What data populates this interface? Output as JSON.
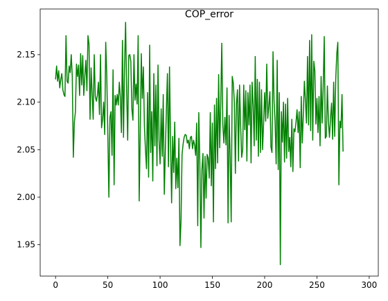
{
  "chart_data": {
    "type": "line",
    "title": "COP_error",
    "xlabel": "",
    "ylabel": "",
    "xlim": [
      -14.7,
      308.7
    ],
    "ylim": [
      1.917,
      2.198
    ],
    "xticks": [
      0,
      50,
      100,
      150,
      200,
      250,
      300
    ],
    "xtick_labels": [
      "0",
      "50",
      "100",
      "150",
      "200",
      "250",
      "300"
    ],
    "yticks": [
      1.95,
      2.0,
      2.05,
      2.1,
      2.15
    ],
    "ytick_labels": [
      "1.95",
      "2.00",
      "2.05",
      "2.10",
      "2.15"
    ],
    "grid": false,
    "legend": "none",
    "line_color": "#008000",
    "series": [
      {
        "values": [
          2.124,
          2.138,
          2.122,
          2.133,
          2.115,
          2.124,
          2.13,
          2.113,
          2.108,
          2.106,
          2.17,
          2.122,
          2.12,
          2.138,
          2.131,
          2.15,
          2.127,
          2.042,
          2.079,
          2.09,
          2.14,
          2.127,
          2.139,
          2.107,
          2.151,
          2.118,
          2.149,
          2.107,
          2.128,
          2.144,
          2.112,
          2.17,
          2.161,
          2.082,
          2.136,
          2.108,
          2.082,
          2.15,
          2.106,
          2.101,
          2.107,
          2.121,
          2.087,
          2.15,
          2.073,
          2.082,
          2.1,
          2.066,
          2.163,
          2.128,
          2.066,
          2.0,
          2.084,
          2.09,
          2.044,
          2.134,
          2.013,
          2.107,
          2.097,
          2.108,
          2.097,
          2.121,
          2.105,
          2.068,
          2.165,
          2.063,
          2.139,
          2.184,
          2.112,
          2.06,
          2.149,
          2.15,
          2.143,
          2.093,
          2.081,
          2.15,
          2.102,
          2.119,
          2.098,
          2.17,
          1.996,
          2.068,
          2.151,
          2.104,
          2.137,
          2.075,
          2.05,
          2.03,
          2.11,
          2.021,
          2.16,
          2.047,
          2.09,
          2.017,
          2.13,
          2.054,
          2.118,
          2.033,
          2.139,
          2.06,
          2.035,
          2.093,
          2.043,
          2.108,
          2.003,
          2.048,
          2.092,
          2.13,
          2.032,
          2.137,
          2.058,
          1.994,
          2.064,
          2.026,
          2.079,
          2.009,
          2.041,
          2.01,
          2.062,
          1.949,
          1.975,
          2.045,
          2.056,
          2.063,
          2.066,
          2.065,
          2.057,
          2.06,
          2.051,
          2.063,
          2.064,
          2.051,
          2.06,
          2.055,
          2.044,
          2.078,
          1.97,
          2.089,
          2.036,
          1.947,
          2.029,
          2.046,
          1.978,
          2.043,
          1.999,
          2.045,
          2.041,
          2.02,
          2.089,
          2.012,
          2.078,
          1.974,
          2.097,
          2.03,
          2.104,
          2.036,
          2.129,
          2.052,
          2.099,
          2.162,
          2.076,
          2.057,
          2.084,
          2.055,
          2.115,
          1.973,
          2.086,
          2.042,
          1.974,
          2.127,
          2.12,
          2.1,
          2.025,
          2.098,
          2.113,
          2.038,
          2.118,
          2.077,
          2.042,
          2.05,
          2.118,
          2.071,
          2.112,
          2.038,
          2.11,
          2.076,
          2.118,
          2.036,
          2.121,
          2.097,
          2.054,
          2.148,
          2.06,
          2.124,
          2.043,
          2.121,
          2.047,
          2.113,
          2.05,
          2.078,
          2.11,
          2.08,
          2.14,
          2.083,
          2.096,
          2.111,
          2.053,
          2.047,
          2.153,
          2.101,
          2.079,
          2.035,
          2.144,
          2.029,
          2.11,
          1.929,
          2.09,
          2.058,
          2.1,
          2.037,
          2.098,
          2.041,
          2.104,
          2.048,
          2.063,
          2.032,
          2.082,
          2.027,
          2.072,
          2.069,
          2.079,
          2.092,
          2.068,
          2.09,
          2.031,
          2.106,
          2.057,
          2.088,
          2.122,
          2.102,
          2.078,
          2.148,
          2.076,
          2.165,
          2.07,
          2.171,
          2.06,
          2.143,
          2.133,
          2.077,
          2.104,
          2.068,
          2.106,
          2.054,
          2.127,
          2.078,
          2.115,
          2.169,
          2.062,
          2.064,
          2.117,
          2.079,
          2.063,
          2.083,
          2.099,
          2.061,
          2.121,
          2.064,
          2.124,
          2.151,
          2.163,
          2.013,
          2.08,
          2.073,
          2.108,
          2.048
        ]
      }
    ]
  }
}
